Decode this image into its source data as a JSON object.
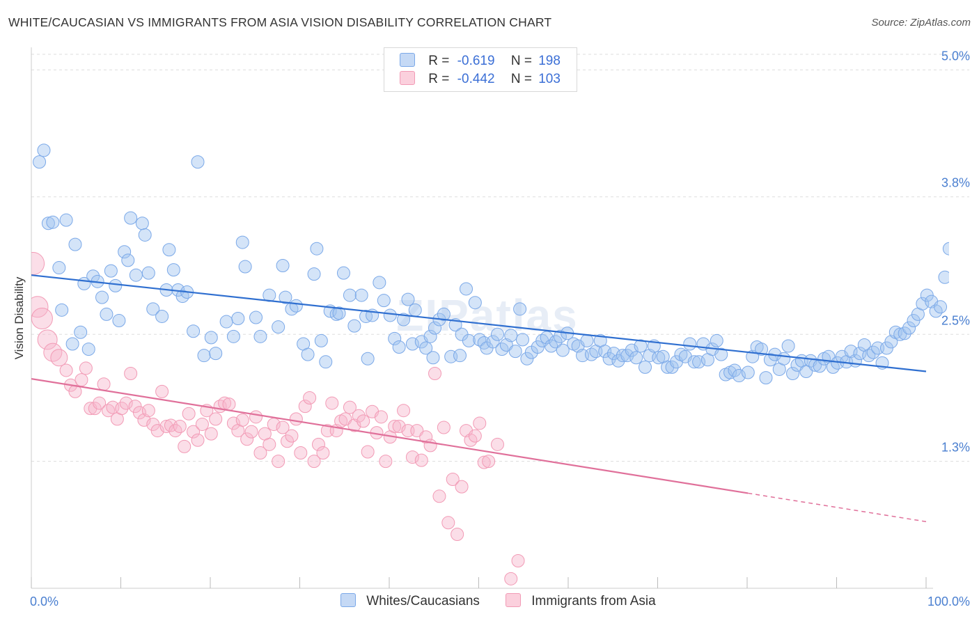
{
  "title": "WHITE/CAUCASIAN VS IMMIGRANTS FROM ASIA VISION DISABILITY CORRELATION CHART",
  "source": "Source: ZipAtlas.com",
  "watermark": "ZIPatlas",
  "legend": {
    "r_label": "R =",
    "n_label": "N =",
    "series": [
      {
        "r": "-0.619",
        "n": "198"
      },
      {
        "r": "-0.442",
        "n": "103"
      }
    ]
  },
  "chart_data": {
    "type": "scatter",
    "title": "WHITE/CAUCASIAN VS IMMIGRANTS FROM ASIA VISION DISABILITY CORRELATION CHART",
    "xlabel": "",
    "ylabel": "Vision Disability",
    "xlim": [
      0,
      100
    ],
    "ylim": [
      0.1,
      5.2
    ],
    "x_tick_labels": [
      "0.0%",
      "100.0%"
    ],
    "y_ticks": [
      1.3,
      2.5,
      3.8,
      5.0
    ],
    "y_tick_labels": [
      "1.3%",
      "2.5%",
      "3.8%",
      "5.0%"
    ],
    "grid": true,
    "legend_position": "top-center",
    "series": [
      {
        "name": "Whites/Caucasians",
        "color": "#7aa8e8",
        "trend": {
          "x0": 0,
          "y0": 3.06,
          "x1": 100,
          "y1": 2.15,
          "solid_until": 100
        },
        "points": [
          [
            0.9,
            4.13
          ],
          [
            1.4,
            4.24
          ],
          [
            1.9,
            3.55
          ],
          [
            2.4,
            3.56
          ],
          [
            3.1,
            3.13
          ],
          [
            3.4,
            2.73
          ],
          [
            3.9,
            3.58
          ],
          [
            4.6,
            2.41
          ],
          [
            4.9,
            3.35
          ],
          [
            5.5,
            2.52
          ],
          [
            5.9,
            2.98
          ],
          [
            6.4,
            2.36
          ],
          [
            6.9,
            3.05
          ],
          [
            7.4,
            3.0
          ],
          [
            7.9,
            2.85
          ],
          [
            8.4,
            2.69
          ],
          [
            8.9,
            3.1
          ],
          [
            9.4,
            2.96
          ],
          [
            9.8,
            2.63
          ],
          [
            10.4,
            3.28
          ],
          [
            10.8,
            3.2
          ],
          [
            11.1,
            3.6
          ],
          [
            11.7,
            3.06
          ],
          [
            12.4,
            3.55
          ],
          [
            12.7,
            3.44
          ],
          [
            13.1,
            3.08
          ],
          [
            13.6,
            2.74
          ],
          [
            14.6,
            2.67
          ],
          [
            15.1,
            2.92
          ],
          [
            15.4,
            3.3
          ],
          [
            15.9,
            3.11
          ],
          [
            16.4,
            2.92
          ],
          [
            16.9,
            2.86
          ],
          [
            17.4,
            2.9
          ],
          [
            18.1,
            2.53
          ],
          [
            18.6,
            4.13
          ],
          [
            19.3,
            2.3
          ],
          [
            20.1,
            2.47
          ],
          [
            20.6,
            2.32
          ],
          [
            21.8,
            2.62
          ],
          [
            22.6,
            2.48
          ],
          [
            23.1,
            2.65
          ],
          [
            23.6,
            3.37
          ],
          [
            23.9,
            3.14
          ],
          [
            25.1,
            2.66
          ],
          [
            25.6,
            2.48
          ],
          [
            26.6,
            2.87
          ],
          [
            27.6,
            2.57
          ],
          [
            28.1,
            3.15
          ],
          [
            28.4,
            2.85
          ],
          [
            29.1,
            2.74
          ],
          [
            29.6,
            2.77
          ],
          [
            30.4,
            2.41
          ],
          [
            30.9,
            2.31
          ],
          [
            31.6,
            3.07
          ],
          [
            31.9,
            3.31
          ],
          [
            32.4,
            2.44
          ],
          [
            32.9,
            2.24
          ],
          [
            33.4,
            2.72
          ],
          [
            34.1,
            2.69
          ],
          [
            34.4,
            2.7
          ],
          [
            34.9,
            3.08
          ],
          [
            35.6,
            2.87
          ],
          [
            36.1,
            2.58
          ],
          [
            36.9,
            2.87
          ],
          [
            37.4,
            2.67
          ],
          [
            37.6,
            2.27
          ],
          [
            38.1,
            2.68
          ],
          [
            38.9,
            2.99
          ],
          [
            39.4,
            2.82
          ],
          [
            40.1,
            2.68
          ],
          [
            40.6,
            2.46
          ],
          [
            41.1,
            2.38
          ],
          [
            41.6,
            2.64
          ],
          [
            42.1,
            2.83
          ],
          [
            42.6,
            2.41
          ],
          [
            42.9,
            2.73
          ],
          [
            43.6,
            2.43
          ],
          [
            44.1,
            2.37
          ],
          [
            44.6,
            2.48
          ],
          [
            44.9,
            2.28
          ],
          [
            45.1,
            2.56
          ],
          [
            45.6,
            2.64
          ],
          [
            46.1,
            2.69
          ],
          [
            46.9,
            2.29
          ],
          [
            47.4,
            2.59
          ],
          [
            47.9,
            2.3
          ],
          [
            48.1,
            2.5
          ],
          [
            48.6,
            2.93
          ],
          [
            48.9,
            2.44
          ],
          [
            49.6,
            2.8
          ],
          [
            50.1,
            2.45
          ],
          [
            50.6,
            2.42
          ],
          [
            50.9,
            2.37
          ],
          [
            51.6,
            2.43
          ],
          [
            52.1,
            2.5
          ],
          [
            52.6,
            2.36
          ],
          [
            53.1,
            2.4
          ],
          [
            53.6,
            2.49
          ],
          [
            54.1,
            2.34
          ],
          [
            54.6,
            2.74
          ],
          [
            54.9,
            2.45
          ],
          [
            55.4,
            2.27
          ],
          [
            55.9,
            2.33
          ],
          [
            56.6,
            2.38
          ],
          [
            57.1,
            2.44
          ],
          [
            57.6,
            2.47
          ],
          [
            58.1,
            2.39
          ],
          [
            58.6,
            2.43
          ],
          [
            59.1,
            2.48
          ],
          [
            59.4,
            2.35
          ],
          [
            59.9,
            2.51
          ],
          [
            60.6,
            2.41
          ],
          [
            61.1,
            2.39
          ],
          [
            61.6,
            2.3
          ],
          [
            62.1,
            2.44
          ],
          [
            62.6,
            2.31
          ],
          [
            63.1,
            2.34
          ],
          [
            63.6,
            2.44
          ],
          [
            64.1,
            2.34
          ],
          [
            64.6,
            2.27
          ],
          [
            65.1,
            2.32
          ],
          [
            65.6,
            2.25
          ],
          [
            66.1,
            2.3
          ],
          [
            66.6,
            2.3
          ],
          [
            67.1,
            2.35
          ],
          [
            67.6,
            2.28
          ],
          [
            68.1,
            2.39
          ],
          [
            68.6,
            2.19
          ],
          [
            69.1,
            2.3
          ],
          [
            69.6,
            2.39
          ],
          [
            70.1,
            2.28
          ],
          [
            70.6,
            2.29
          ],
          [
            71.1,
            2.19
          ],
          [
            71.6,
            2.19
          ],
          [
            72.1,
            2.24
          ],
          [
            72.6,
            2.31
          ],
          [
            73.1,
            2.29
          ],
          [
            73.6,
            2.41
          ],
          [
            74.1,
            2.24
          ],
          [
            74.6,
            2.24
          ],
          [
            75.1,
            2.41
          ],
          [
            75.6,
            2.26
          ],
          [
            76.1,
            2.36
          ],
          [
            76.6,
            2.44
          ],
          [
            77.1,
            2.31
          ],
          [
            77.6,
            2.12
          ],
          [
            78.1,
            2.14
          ],
          [
            78.6,
            2.16
          ],
          [
            79.1,
            2.11
          ],
          [
            80.1,
            2.14
          ],
          [
            80.6,
            2.29
          ],
          [
            81.1,
            2.38
          ],
          [
            81.6,
            2.36
          ],
          [
            82.1,
            2.09
          ],
          [
            82.6,
            2.26
          ],
          [
            83.1,
            2.31
          ],
          [
            83.6,
            2.17
          ],
          [
            84.1,
            2.27
          ],
          [
            84.6,
            2.39
          ],
          [
            85.1,
            2.13
          ],
          [
            85.6,
            2.21
          ],
          [
            86.1,
            2.25
          ],
          [
            86.6,
            2.15
          ],
          [
            87.1,
            2.25
          ],
          [
            87.6,
            2.21
          ],
          [
            88.1,
            2.2
          ],
          [
            88.6,
            2.27
          ],
          [
            89.1,
            2.29
          ],
          [
            89.6,
            2.19
          ],
          [
            90.1,
            2.23
          ],
          [
            90.6,
            2.29
          ],
          [
            91.1,
            2.24
          ],
          [
            91.6,
            2.34
          ],
          [
            92.1,
            2.25
          ],
          [
            92.6,
            2.32
          ],
          [
            93.1,
            2.4
          ],
          [
            93.6,
            2.3
          ],
          [
            94.1,
            2.33
          ],
          [
            94.6,
            2.37
          ],
          [
            95.1,
            2.23
          ],
          [
            95.6,
            2.37
          ],
          [
            96.1,
            2.43
          ],
          [
            96.6,
            2.52
          ],
          [
            97.1,
            2.5
          ],
          [
            97.6,
            2.51
          ],
          [
            98.1,
            2.56
          ],
          [
            98.6,
            2.63
          ],
          [
            99.1,
            2.69
          ],
          [
            99.6,
            2.79
          ],
          [
            100.1,
            2.87
          ],
          [
            100.6,
            2.81
          ],
          [
            101.1,
            2.72
          ],
          [
            101.6,
            2.76
          ],
          [
            102.1,
            3.04
          ],
          [
            102.6,
            3.31
          ]
        ]
      },
      {
        "name": "Immigrants from Asia",
        "color": "#f29ab5",
        "trend": {
          "x0": 0,
          "y0": 2.08,
          "x1": 100,
          "y1": 0.73,
          "solid_until": 80.1
        },
        "points": [
          [
            0.2,
            3.17
          ],
          [
            0.7,
            2.76
          ],
          [
            1.2,
            2.65
          ],
          [
            1.8,
            2.45
          ],
          [
            2.4,
            2.33
          ],
          [
            3.1,
            2.28
          ],
          [
            3.9,
            2.16
          ],
          [
            4.4,
            2.02
          ],
          [
            4.9,
            1.96
          ],
          [
            5.6,
            2.07
          ],
          [
            6.1,
            2.18
          ],
          [
            6.6,
            1.8
          ],
          [
            7.1,
            1.8
          ],
          [
            7.6,
            1.85
          ],
          [
            8.1,
            2.03
          ],
          [
            8.6,
            1.78
          ],
          [
            9.1,
            1.81
          ],
          [
            9.6,
            1.7
          ],
          [
            10.1,
            1.8
          ],
          [
            10.6,
            1.85
          ],
          [
            11.1,
            2.13
          ],
          [
            11.6,
            1.82
          ],
          [
            12.1,
            1.76
          ],
          [
            12.6,
            1.69
          ],
          [
            13.1,
            1.78
          ],
          [
            13.6,
            1.65
          ],
          [
            14.1,
            1.59
          ],
          [
            14.6,
            1.96
          ],
          [
            15.1,
            1.63
          ],
          [
            15.6,
            1.64
          ],
          [
            16.1,
            1.59
          ],
          [
            16.6,
            1.63
          ],
          [
            17.1,
            1.44
          ],
          [
            17.6,
            1.75
          ],
          [
            18.1,
            1.58
          ],
          [
            18.6,
            1.5
          ],
          [
            19.1,
            1.65
          ],
          [
            19.6,
            1.78
          ],
          [
            20.1,
            1.56
          ],
          [
            20.6,
            1.7
          ],
          [
            21.1,
            1.82
          ],
          [
            21.6,
            1.85
          ],
          [
            22.1,
            1.84
          ],
          [
            22.6,
            1.66
          ],
          [
            23.1,
            1.59
          ],
          [
            23.6,
            1.69
          ],
          [
            24.1,
            1.51
          ],
          [
            24.6,
            1.58
          ],
          [
            25.1,
            1.72
          ],
          [
            25.6,
            1.38
          ],
          [
            26.1,
            1.56
          ],
          [
            26.6,
            1.46
          ],
          [
            27.1,
            1.65
          ],
          [
            27.6,
            1.3
          ],
          [
            28.1,
            1.62
          ],
          [
            28.6,
            1.49
          ],
          [
            29.1,
            1.54
          ],
          [
            29.6,
            1.7
          ],
          [
            30.1,
            1.38
          ],
          [
            30.6,
            1.82
          ],
          [
            31.1,
            1.9
          ],
          [
            31.6,
            1.3
          ],
          [
            32.1,
            1.46
          ],
          [
            32.6,
            1.38
          ],
          [
            33.1,
            1.59
          ],
          [
            33.6,
            1.85
          ],
          [
            34.1,
            1.59
          ],
          [
            34.6,
            1.68
          ],
          [
            35.1,
            1.7
          ],
          [
            35.6,
            1.81
          ],
          [
            36.1,
            1.64
          ],
          [
            36.6,
            1.73
          ],
          [
            37.1,
            1.68
          ],
          [
            37.6,
            1.39
          ],
          [
            38.1,
            1.77
          ],
          [
            38.6,
            1.57
          ],
          [
            39.1,
            1.72
          ],
          [
            39.6,
            1.3
          ],
          [
            40.1,
            1.53
          ],
          [
            40.6,
            1.63
          ],
          [
            41.1,
            1.63
          ],
          [
            41.6,
            1.78
          ],
          [
            42.1,
            1.59
          ],
          [
            42.6,
            1.34
          ],
          [
            43.1,
            1.59
          ],
          [
            43.6,
            1.31
          ],
          [
            44.1,
            1.53
          ],
          [
            44.6,
            1.45
          ],
          [
            45.1,
            2.13
          ],
          [
            45.6,
            0.97
          ],
          [
            46.1,
            1.62
          ],
          [
            46.6,
            0.72
          ],
          [
            47.1,
            1.13
          ],
          [
            47.6,
            0.61
          ],
          [
            48.1,
            1.06
          ],
          [
            48.6,
            1.59
          ],
          [
            49.1,
            1.5
          ],
          [
            49.6,
            1.54
          ],
          [
            50.1,
            1.66
          ],
          [
            50.6,
            1.29
          ],
          [
            51.1,
            1.3
          ],
          [
            52.1,
            1.46
          ],
          [
            53.6,
            0.19
          ],
          [
            54.4,
            0.36
          ]
        ]
      }
    ]
  }
}
